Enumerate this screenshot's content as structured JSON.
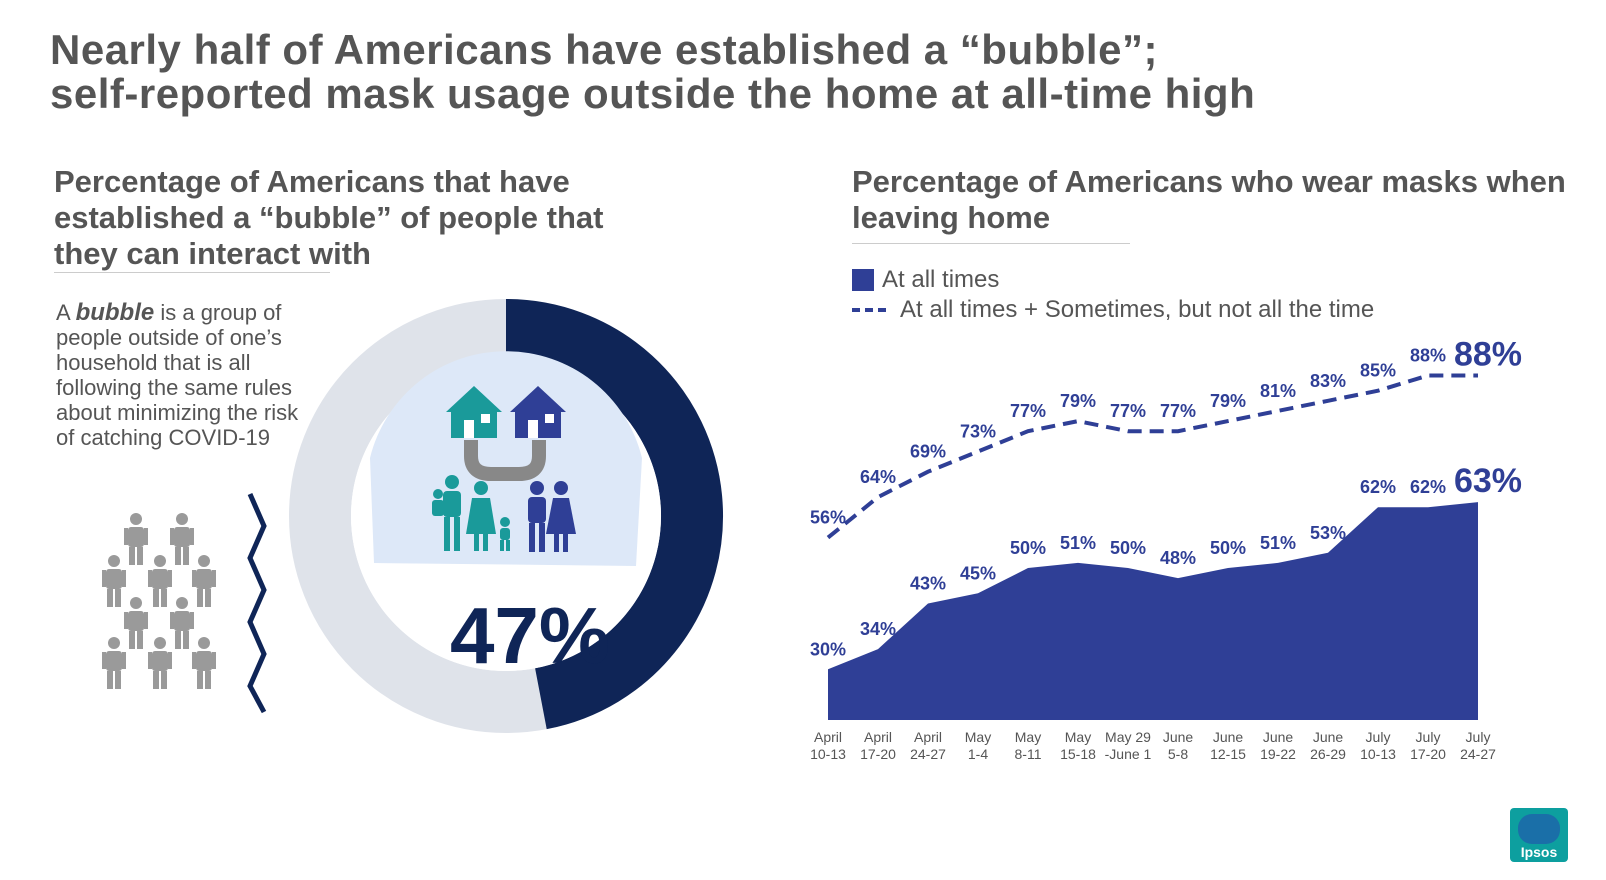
{
  "title_line1": "Nearly half of Americans have established a “bubble”;",
  "title_line2": "self-reported mask usage outside the home at all-time high",
  "left": {
    "subtitle": "Percentage of Americans that have established a “bubble” of people that they can interact with",
    "def_lead": "A ",
    "def_term": "bubble",
    "def_rest": " is a group of people outside of one’s household that is all following the same rules about minimizing the risk of catching COVID-19",
    "percent_label": "47%",
    "percent_value": 47,
    "colors": {
      "filled": "#0f2557",
      "remainder": "#dfe3ea",
      "inner": "#dde8f8"
    }
  },
  "right": {
    "subtitle": "Percentage of Americans who wear masks when leaving home",
    "legend": [
      "At all times",
      "At all times + Sometimes, but not all the time"
    ]
  },
  "logo_text": "Ipsos",
  "chart_data": {
    "type": "area",
    "categories": [
      [
        "April",
        "10-13"
      ],
      [
        "April",
        "17-20"
      ],
      [
        "April",
        "24-27"
      ],
      [
        "May",
        "1-4"
      ],
      [
        "May",
        "8-11"
      ],
      [
        "May",
        "15-18"
      ],
      [
        "May 29",
        "-June 1"
      ],
      [
        "June",
        "5-8"
      ],
      [
        "June",
        "12-15"
      ],
      [
        "June",
        "19-22"
      ],
      [
        "June",
        "26-29"
      ],
      [
        "July",
        "10-13"
      ],
      [
        "July",
        "17-20"
      ],
      [
        "July",
        "24-27"
      ]
    ],
    "series": [
      {
        "name": "At all times",
        "style": "area",
        "color": "#2f3f96",
        "values": [
          30,
          34,
          43,
          45,
          50,
          51,
          50,
          48,
          50,
          51,
          53,
          62,
          62,
          63
        ],
        "labels": [
          "30%",
          "34%",
          "43%",
          "45%",
          "50%",
          "51%",
          "50%",
          "48%",
          "50%",
          "51%",
          "53%",
          "62%",
          "62%",
          "63%"
        ]
      },
      {
        "name": "At all times + Sometimes, but not all the time",
        "style": "dashed-line",
        "color": "#2f3f96",
        "values": [
          56,
          64,
          69,
          73,
          77,
          79,
          77,
          77,
          79,
          81,
          83,
          85,
          88,
          88
        ],
        "labels": [
          "56%",
          "64%",
          "69%",
          "73%",
          "77%",
          "79%",
          "77%",
          "77%",
          "79%",
          "81%",
          "83%",
          "85%",
          "88%",
          "88%"
        ]
      }
    ],
    "ylim": [
      0,
      100
    ],
    "grid": false
  }
}
